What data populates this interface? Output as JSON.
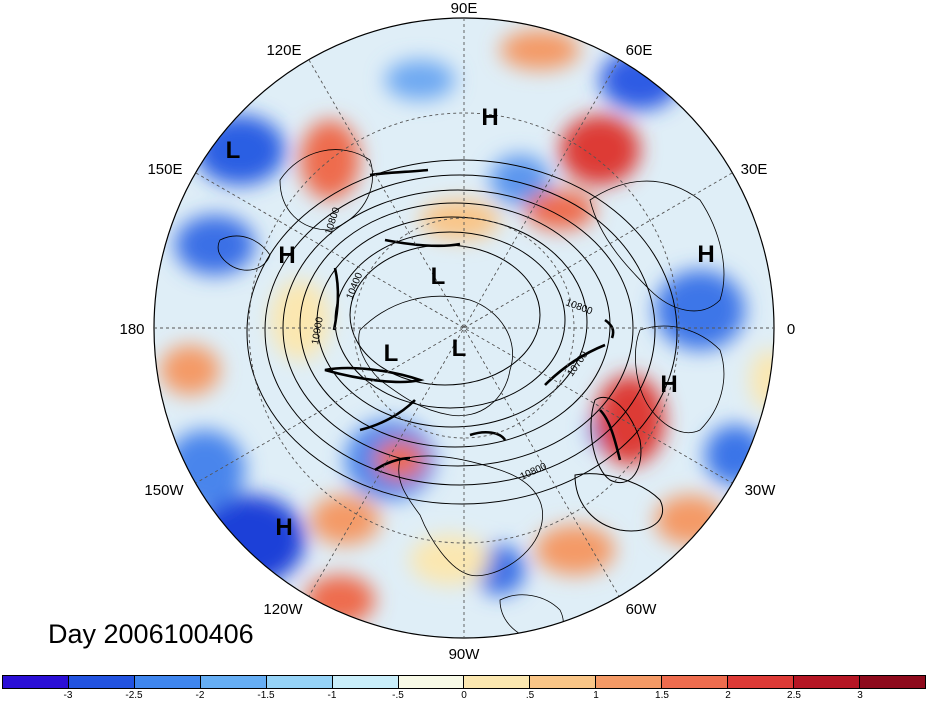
{
  "map": {
    "longitude_labels": [
      {
        "text": "90E",
        "key": "lon_90e"
      },
      {
        "text": "60E",
        "key": "lon_60e"
      },
      {
        "text": "30E",
        "key": "lon_30e"
      },
      {
        "text": "0",
        "key": "lon_0"
      },
      {
        "text": "30W",
        "key": "lon_30w"
      },
      {
        "text": "60W",
        "key": "lon_60w"
      },
      {
        "text": "90W",
        "key": "lon_90w"
      },
      {
        "text": "120W",
        "key": "lon_120w"
      },
      {
        "text": "150W",
        "key": "lon_150w"
      },
      {
        "text": "180",
        "key": "lon_180"
      },
      {
        "text": "150E",
        "key": "lon_150e"
      },
      {
        "text": "120E",
        "key": "lon_120e"
      }
    ],
    "pressure_markers": [
      "H",
      "L",
      "H",
      "H",
      "L",
      "L",
      "L",
      "H",
      "H"
    ],
    "contour_labels": [
      "10800",
      "10400",
      "10900",
      "10700",
      "10800",
      "10800"
    ],
    "title": "Day 2006100406"
  },
  "colorbar": {
    "colors": [
      "#2b0fd6",
      "#2253e0",
      "#3f86ee",
      "#66aef4",
      "#96d3f7",
      "#c9eefa",
      "#f7f9e6",
      "#fbe7b0",
      "#f9c587",
      "#f49a66",
      "#ee6c4e",
      "#dd3a36",
      "#b51624",
      "#8e0a1c"
    ],
    "tick_labels": [
      "-3",
      "-2.5",
      "-2",
      "-1.5",
      "-1",
      "-.5",
      "0",
      ".5",
      "1",
      "1.5",
      "2",
      "2.5",
      "3"
    ]
  }
}
